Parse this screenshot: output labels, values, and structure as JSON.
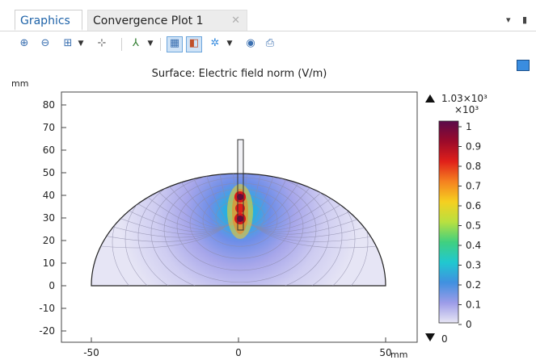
{
  "tabs": [
    {
      "label": "Graphics",
      "active": true
    },
    {
      "label": "Convergence Plot 1",
      "active": false
    }
  ],
  "window_controls": {
    "menu": "▾",
    "pin": "▮"
  },
  "toolbar": {
    "icons": [
      "zoom-in-icon",
      "zoom-out-icon",
      "zoom-box-icon",
      "dropdown-icon",
      "zoom-extents-icon",
      "axis-orientation-icon",
      "dropdown-icon",
      "wireframe-icon",
      "transparency-icon",
      "scene-light-icon",
      "dropdown-icon",
      "camera-icon",
      "print-icon"
    ]
  },
  "plot": {
    "title": "Surface: Electric field norm (V/m)",
    "y_unit": "mm",
    "x_unit": "mm",
    "y_ticks": [
      "80",
      "70",
      "60",
      "50",
      "40",
      "30",
      "20",
      "10",
      "0",
      "-10",
      "-20"
    ],
    "x_ticks": [
      "-50",
      "0",
      "50"
    ],
    "colorbar": {
      "max_label": "1.03×10³",
      "scale_label": "×10³",
      "min_label": "0",
      "ticks": [
        "1",
        "0.9",
        "0.8",
        "0.7",
        "0.6",
        "0.5",
        "0.4",
        "0.3",
        "0.2",
        "0.1",
        "0"
      ],
      "colors": [
        "#5a0a4a",
        "#9b0a2a",
        "#e0201a",
        "#f58220",
        "#f5d020",
        "#b8e040",
        "#40d080",
        "#20c8d0",
        "#4090e0",
        "#9c9ce8",
        "#e8e6f4"
      ]
    }
  }
}
